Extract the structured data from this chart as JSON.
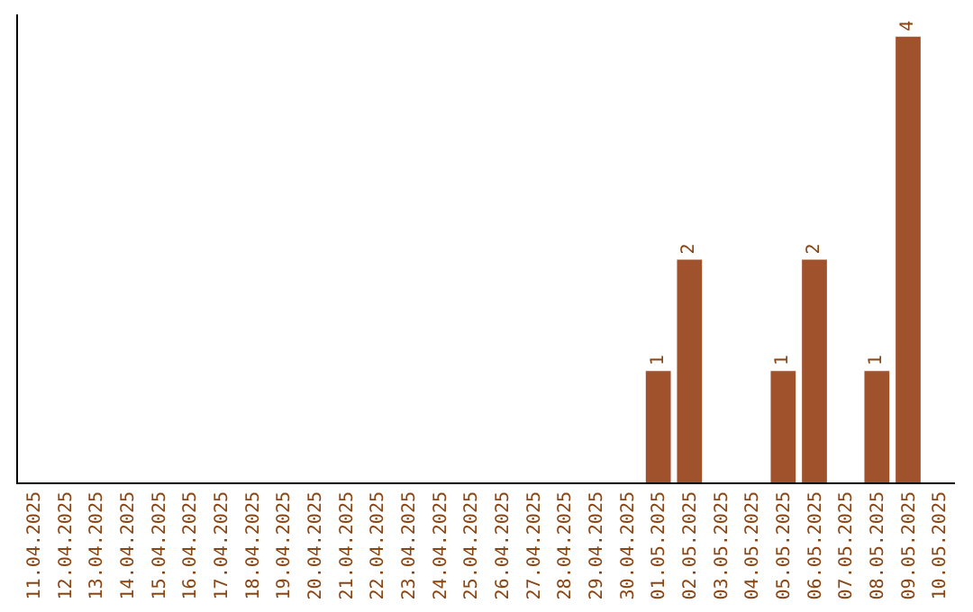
{
  "chart_data": {
    "type": "bar",
    "categories": [
      "11.04.2025",
      "12.04.2025",
      "13.04.2025",
      "14.04.2025",
      "15.04.2025",
      "16.04.2025",
      "17.04.2025",
      "18.04.2025",
      "19.04.2025",
      "20.04.2025",
      "21.04.2025",
      "22.04.2025",
      "23.04.2025",
      "24.04.2025",
      "25.04.2025",
      "26.04.2025",
      "27.04.2025",
      "28.04.2025",
      "29.04.2025",
      "30.04.2025",
      "01.05.2025",
      "02.05.2025",
      "03.05.2025",
      "04.05.2025",
      "05.05.2025",
      "06.05.2025",
      "07.05.2025",
      "08.05.2025",
      "09.05.2025",
      "10.05.2025"
    ],
    "values": [
      null,
      null,
      null,
      null,
      null,
      null,
      null,
      null,
      null,
      null,
      null,
      null,
      null,
      null,
      null,
      null,
      null,
      null,
      null,
      null,
      1,
      2,
      null,
      null,
      1,
      2,
      null,
      1,
      4,
      null
    ],
    "data_labels": true,
    "color": "#a0522d",
    "tick_labels": "x",
    "grid": false,
    "legend": false
  }
}
